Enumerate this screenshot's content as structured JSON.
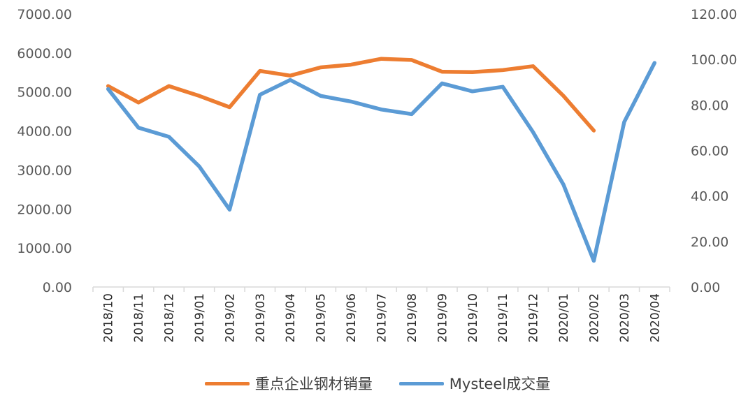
{
  "chart_data": {
    "type": "line",
    "categories": [
      "2018/10",
      "2018/11",
      "2018/12",
      "2019/01",
      "2019/02",
      "2019/03",
      "2019/04",
      "2019/05",
      "2019/06",
      "2019/07",
      "2019/08",
      "2019/09",
      "2019/10",
      "2019/11",
      "2019/12",
      "2020/01",
      "2020/02",
      "2020/03",
      "2020/04"
    ],
    "y_left": {
      "ylim": [
        0,
        7000
      ],
      "ticks": [
        "0.00",
        "1000.00",
        "2000.00",
        "3000.00",
        "4000.00",
        "5000.00",
        "6000.00",
        "7000.00"
      ]
    },
    "y_right": {
      "ylim": [
        0,
        120
      ],
      "ticks": [
        "0.00",
        "20.00",
        "40.00",
        "60.00",
        "80.00",
        "100.00",
        "120.00"
      ]
    },
    "grid": false,
    "legend_position": "bottom",
    "series": [
      {
        "name": "重点企业钢材销量",
        "axis": "left",
        "color": "#ED7D31",
        "values": [
          5150,
          4730,
          5150,
          4900,
          4610,
          5540,
          5420,
          5630,
          5700,
          5850,
          5820,
          5520,
          5510,
          5560,
          5660,
          4900,
          4010,
          null,
          null
        ]
      },
      {
        "name": "Mysteel成交量",
        "axis": "right",
        "color": "#5B9BD5",
        "values": [
          87,
          70,
          66,
          53,
          34,
          84.5,
          91,
          84,
          81.5,
          78,
          76,
          89.5,
          86,
          88,
          68,
          45,
          11.5,
          72.5,
          98.5
        ]
      }
    ]
  }
}
